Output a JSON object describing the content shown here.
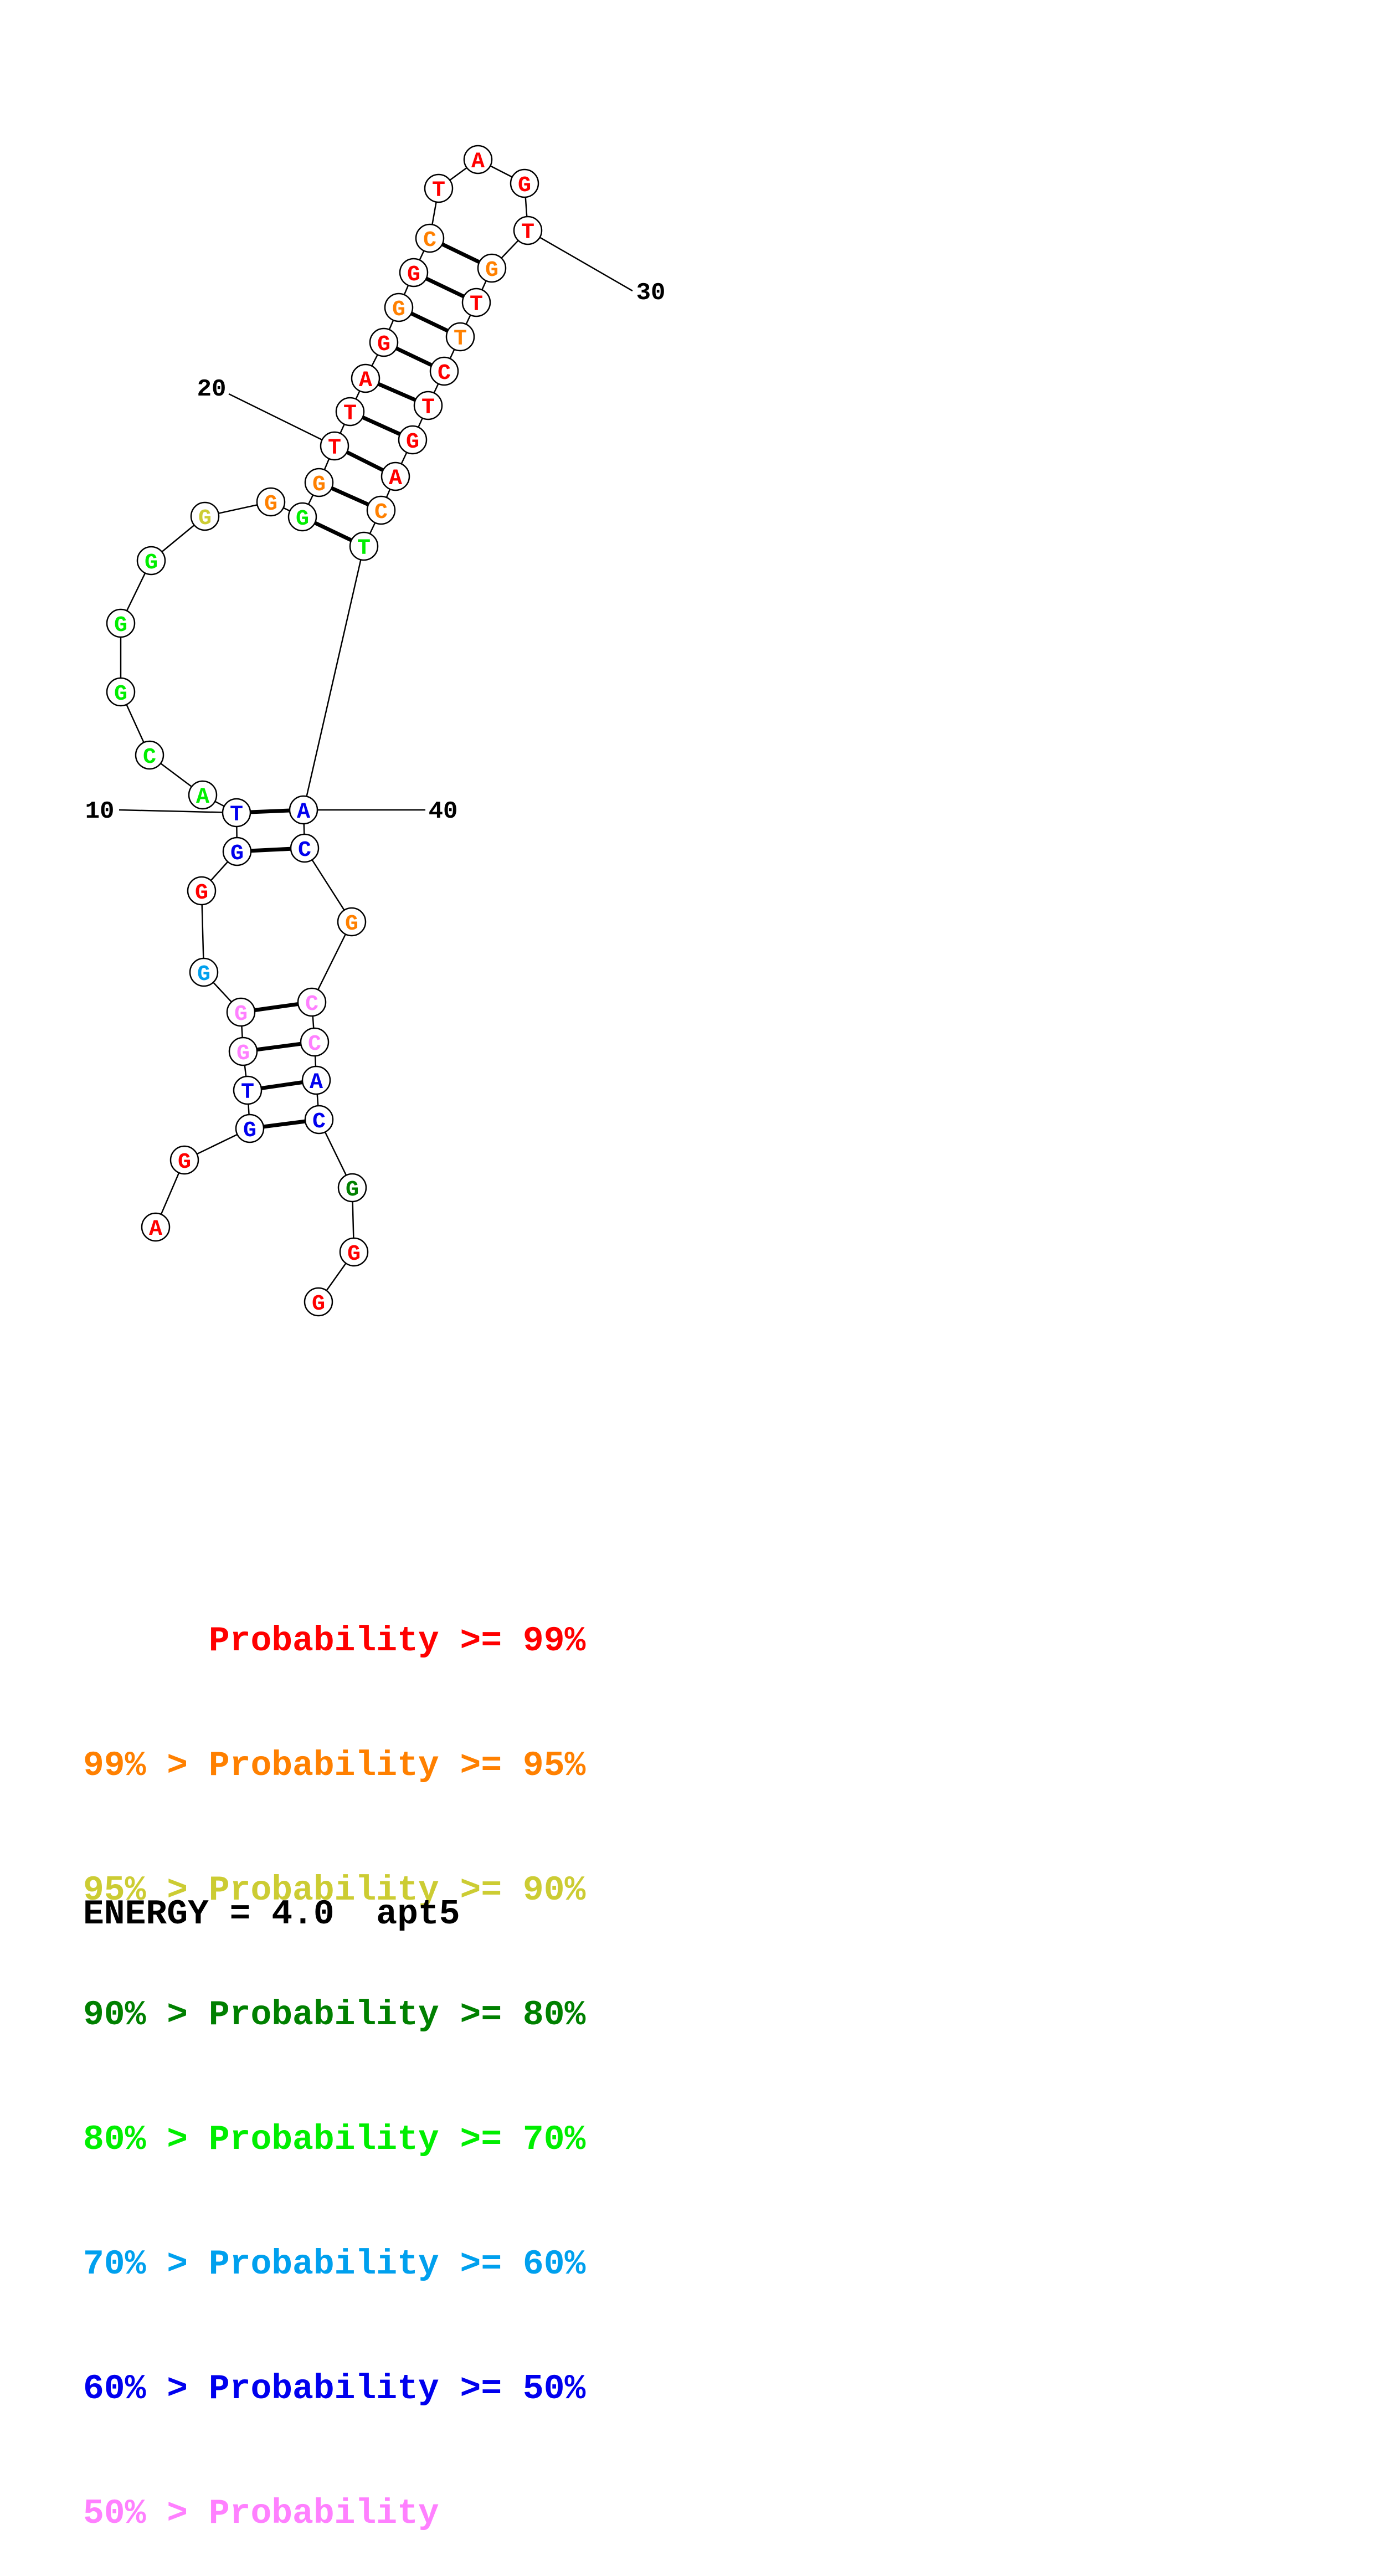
{
  "colors": {
    "red": "#ff0000",
    "orange": "#ff8000",
    "olive": "#cccc33",
    "darkgreen": "#008000",
    "green": "#00ee00",
    "cyan": "#00a0ee",
    "blue": "#0000ee",
    "pink": "#ff80ff"
  },
  "nucleotides": [
    {
      "n": 1,
      "base": "A",
      "color": "red"
    },
    {
      "n": 2,
      "base": "G",
      "color": "red"
    },
    {
      "n": 3,
      "base": "G",
      "color": "blue"
    },
    {
      "n": 4,
      "base": "T",
      "color": "blue"
    },
    {
      "n": 5,
      "base": "G",
      "color": "pink"
    },
    {
      "n": 6,
      "base": "G",
      "color": "pink"
    },
    {
      "n": 7,
      "base": "G",
      "color": "cyan"
    },
    {
      "n": 8,
      "base": "G",
      "color": "red"
    },
    {
      "n": 9,
      "base": "G",
      "color": "blue"
    },
    {
      "n": 10,
      "base": "T",
      "color": "blue"
    },
    {
      "n": 11,
      "base": "A",
      "color": "green"
    },
    {
      "n": 12,
      "base": "C",
      "color": "green"
    },
    {
      "n": 13,
      "base": "G",
      "color": "green"
    },
    {
      "n": 14,
      "base": "G",
      "color": "green"
    },
    {
      "n": 15,
      "base": "G",
      "color": "green"
    },
    {
      "n": 16,
      "base": "G",
      "color": "olive"
    },
    {
      "n": 17,
      "base": "G",
      "color": "orange"
    },
    {
      "n": 18,
      "base": "G",
      "color": "green"
    },
    {
      "n": 19,
      "base": "G",
      "color": "orange"
    },
    {
      "n": 20,
      "base": "T",
      "color": "red"
    },
    {
      "n": 21,
      "base": "T",
      "color": "red"
    },
    {
      "n": 22,
      "base": "A",
      "color": "red"
    },
    {
      "n": 23,
      "base": "G",
      "color": "red"
    },
    {
      "n": 24,
      "base": "G",
      "color": "orange"
    },
    {
      "n": 25,
      "base": "G",
      "color": "red"
    },
    {
      "n": 26,
      "base": "C",
      "color": "orange"
    },
    {
      "n": 27,
      "base": "T",
      "color": "red"
    },
    {
      "n": 28,
      "base": "A",
      "color": "red"
    },
    {
      "n": 29,
      "base": "G",
      "color": "red"
    },
    {
      "n": 30,
      "base": "T",
      "color": "red"
    },
    {
      "n": 31,
      "base": "G",
      "color": "orange"
    },
    {
      "n": 32,
      "base": "T",
      "color": "red"
    },
    {
      "n": 33,
      "base": "T",
      "color": "orange"
    },
    {
      "n": 34,
      "base": "C",
      "color": "red"
    },
    {
      "n": 35,
      "base": "T",
      "color": "red"
    },
    {
      "n": 36,
      "base": "G",
      "color": "red"
    },
    {
      "n": 37,
      "base": "A",
      "color": "red"
    },
    {
      "n": 38,
      "base": "C",
      "color": "orange"
    },
    {
      "n": 39,
      "base": "T",
      "color": "green"
    },
    {
      "n": 40,
      "base": "A",
      "color": "blue"
    },
    {
      "n": 41,
      "base": "C",
      "color": "blue"
    },
    {
      "n": 42,
      "base": "G",
      "color": "orange"
    },
    {
      "n": 43,
      "base": "C",
      "color": "pink"
    },
    {
      "n": 44,
      "base": "C",
      "color": "pink"
    },
    {
      "n": 45,
      "base": "A",
      "color": "blue"
    },
    {
      "n": 46,
      "base": "C",
      "color": "blue"
    },
    {
      "n": 47,
      "base": "G",
      "color": "darkgreen"
    },
    {
      "n": 48,
      "base": "G",
      "color": "red"
    },
    {
      "n": 49,
      "base": "G",
      "color": "red"
    }
  ],
  "pairs": [
    [
      3,
      46
    ],
    [
      4,
      45
    ],
    [
      5,
      44
    ],
    [
      6,
      43
    ],
    [
      9,
      41
    ],
    [
      10,
      40
    ],
    [
      18,
      39
    ],
    [
      19,
      38
    ],
    [
      20,
      37
    ],
    [
      21,
      36
    ],
    [
      22,
      35
    ],
    [
      23,
      34
    ],
    [
      24,
      33
    ],
    [
      25,
      32
    ],
    [
      26,
      31
    ]
  ],
  "position_labels": [
    {
      "n": 10,
      "text": "10"
    },
    {
      "n": 20,
      "text": "20"
    },
    {
      "n": 30,
      "text": "30"
    },
    {
      "n": 40,
      "text": "40"
    }
  ],
  "legend": [
    {
      "text": "      Probability >= 99%",
      "color": "red"
    },
    {
      "text": "99% > Probability >= 95%",
      "color": "orange"
    },
    {
      "text": "95% > Probability >= 90%",
      "color": "olive"
    },
    {
      "text": "90% > Probability >= 80%",
      "color": "darkgreen"
    },
    {
      "text": "80% > Probability >= 70%",
      "color": "green"
    },
    {
      "text": "70% > Probability >= 60%",
      "color": "cyan"
    },
    {
      "text": "60% > Probability >= 50%",
      "color": "blue"
    },
    {
      "text": "50% > Probability",
      "color": "pink"
    }
  ],
  "energy_label": "ENERGY = 4.0  apt5"
}
